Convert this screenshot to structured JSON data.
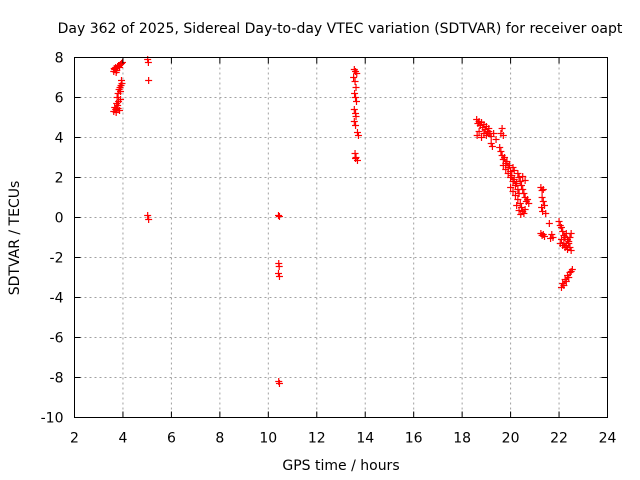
{
  "chart_data": {
    "type": "scatter",
    "title": "Day 362 of 2025, Sidereal Day-to-day VTEC variation (SDTVAR) for receiver oapt",
    "xlabel": "GPS time / hours",
    "ylabel": "SDTVAR / TECUs",
    "xlim": [
      2,
      24
    ],
    "ylim": [
      -10,
      8
    ],
    "xticks": [
      "2",
      "4",
      "6",
      "8",
      "10",
      "12",
      "14",
      "16",
      "18",
      "20",
      "22",
      "24"
    ],
    "yticks": [
      "8",
      "6",
      "4",
      "2",
      "0",
      "-2",
      "-4",
      "-6",
      "-8",
      "-10"
    ],
    "grid": true,
    "marker": "+",
    "color": "#ff0000",
    "series": [
      {
        "name": "SDTVAR",
        "points": [
          [
            3.62,
            5.3
          ],
          [
            3.66,
            5.5
          ],
          [
            3.7,
            5.4
          ],
          [
            3.74,
            5.7
          ],
          [
            3.78,
            5.6
          ],
          [
            3.82,
            5.8
          ],
          [
            3.86,
            5.35
          ],
          [
            3.9,
            5.9
          ],
          [
            3.72,
            5.25
          ],
          [
            3.8,
            5.45
          ],
          [
            3.76,
            6.0
          ],
          [
            3.8,
            6.2
          ],
          [
            3.84,
            6.4
          ],
          [
            3.88,
            6.5
          ],
          [
            3.92,
            6.6
          ],
          [
            3.96,
            6.7
          ],
          [
            3.9,
            6.3
          ],
          [
            3.94,
            6.85
          ],
          [
            3.62,
            7.3
          ],
          [
            3.66,
            7.4
          ],
          [
            3.7,
            7.5
          ],
          [
            3.74,
            7.35
          ],
          [
            3.78,
            7.55
          ],
          [
            3.82,
            7.6
          ],
          [
            3.86,
            7.5
          ],
          [
            3.9,
            7.65
          ],
          [
            3.94,
            7.7
          ],
          [
            3.98,
            7.75
          ],
          [
            3.64,
            7.45
          ],
          [
            3.72,
            7.25
          ],
          [
            5.02,
            7.9
          ],
          [
            5.05,
            7.75
          ],
          [
            5.06,
            6.85
          ],
          [
            5.02,
            0.1
          ],
          [
            5.06,
            -0.1
          ],
          [
            10.42,
            0.1
          ],
          [
            10.46,
            0.05
          ],
          [
            10.43,
            -2.3
          ],
          [
            10.45,
            -2.45
          ],
          [
            10.42,
            -2.8
          ],
          [
            10.46,
            -2.95
          ],
          [
            10.43,
            -8.2
          ],
          [
            10.46,
            -8.3
          ],
          [
            13.55,
            7.4
          ],
          [
            13.6,
            7.3
          ],
          [
            13.65,
            7.2
          ],
          [
            13.52,
            7.0
          ],
          [
            13.58,
            6.8
          ],
          [
            13.62,
            6.5
          ],
          [
            13.56,
            6.2
          ],
          [
            13.6,
            6.0
          ],
          [
            13.64,
            5.8
          ],
          [
            13.55,
            5.4
          ],
          [
            13.6,
            5.2
          ],
          [
            13.62,
            5.05
          ],
          [
            13.55,
            4.8
          ],
          [
            13.6,
            4.6
          ],
          [
            13.68,
            4.25
          ],
          [
            13.72,
            4.1
          ],
          [
            13.58,
            3.2
          ],
          [
            13.62,
            3.0
          ],
          [
            13.68,
            2.85
          ],
          [
            13.6,
            2.95
          ],
          [
            18.6,
            4.9
          ],
          [
            18.65,
            4.7
          ],
          [
            18.7,
            4.8
          ],
          [
            18.75,
            4.6
          ],
          [
            18.8,
            4.75
          ],
          [
            18.85,
            4.5
          ],
          [
            18.9,
            4.65
          ],
          [
            18.95,
            4.4
          ],
          [
            19.0,
            4.55
          ],
          [
            19.05,
            4.3
          ],
          [
            19.1,
            4.45
          ],
          [
            19.15,
            4.2
          ],
          [
            18.62,
            4.1
          ],
          [
            18.7,
            4.3
          ],
          [
            18.8,
            4.0
          ],
          [
            18.9,
            4.2
          ],
          [
            19.0,
            4.1
          ],
          [
            19.1,
            4.3
          ],
          [
            19.2,
            4.05
          ],
          [
            19.3,
            4.2
          ],
          [
            19.4,
            3.9
          ],
          [
            19.2,
            3.7
          ],
          [
            19.25,
            3.55
          ],
          [
            19.6,
            4.2
          ],
          [
            19.65,
            4.45
          ],
          [
            19.7,
            4.1
          ],
          [
            19.55,
            3.5
          ],
          [
            19.6,
            3.3
          ],
          [
            19.65,
            3.1
          ],
          [
            19.7,
            2.9
          ],
          [
            19.75,
            3.0
          ],
          [
            19.8,
            2.7
          ],
          [
            19.85,
            2.8
          ],
          [
            19.9,
            2.5
          ],
          [
            19.95,
            2.6
          ],
          [
            20.0,
            2.3
          ],
          [
            19.7,
            2.6
          ],
          [
            19.8,
            2.4
          ],
          [
            19.9,
            2.2
          ],
          [
            20.0,
            2.0
          ],
          [
            20.05,
            2.1
          ],
          [
            20.1,
            1.8
          ],
          [
            20.15,
            1.9
          ],
          [
            20.2,
            1.6
          ],
          [
            20.25,
            1.7
          ],
          [
            20.3,
            1.4
          ],
          [
            20.0,
            1.5
          ],
          [
            20.1,
            1.3
          ],
          [
            20.2,
            1.1
          ],
          [
            20.3,
            0.9
          ],
          [
            20.35,
            1.2
          ],
          [
            20.4,
            0.7
          ],
          [
            20.45,
            0.5
          ],
          [
            20.5,
            0.3
          ],
          [
            20.55,
            0.2
          ],
          [
            20.6,
            0.4
          ],
          [
            20.3,
            2.2
          ],
          [
            20.35,
            2.0
          ],
          [
            20.4,
            1.8
          ],
          [
            20.45,
            1.6
          ],
          [
            20.5,
            1.4
          ],
          [
            20.55,
            1.2
          ],
          [
            20.6,
            1.0
          ],
          [
            20.65,
            0.8
          ],
          [
            20.7,
            0.9
          ],
          [
            20.75,
            0.7
          ],
          [
            20.1,
            2.5
          ],
          [
            20.15,
            2.35
          ],
          [
            20.5,
            2.05
          ],
          [
            20.6,
            1.85
          ],
          [
            20.25,
            0.6
          ],
          [
            20.35,
            0.35
          ],
          [
            20.42,
            0.15
          ],
          [
            21.25,
            1.5
          ],
          [
            21.3,
            1.35
          ],
          [
            21.35,
            1.4
          ],
          [
            21.3,
            1.0
          ],
          [
            21.35,
            0.8
          ],
          [
            21.28,
            0.5
          ],
          [
            21.32,
            0.3
          ],
          [
            21.4,
            0.6
          ],
          [
            21.45,
            0.2
          ],
          [
            21.6,
            -0.3
          ],
          [
            21.25,
            -0.8
          ],
          [
            21.3,
            -0.9
          ],
          [
            21.35,
            -0.85
          ],
          [
            21.4,
            -0.95
          ],
          [
            21.7,
            -0.85
          ],
          [
            21.75,
            -1.0
          ],
          [
            21.65,
            -1.05
          ],
          [
            22.0,
            -0.2
          ],
          [
            22.05,
            -0.4
          ],
          [
            22.1,
            -0.5
          ],
          [
            22.15,
            -0.7
          ],
          [
            22.2,
            -0.9
          ],
          [
            22.25,
            -1.0
          ],
          [
            22.3,
            -0.8
          ],
          [
            22.35,
            -1.1
          ],
          [
            22.4,
            -1.2
          ],
          [
            22.45,
            -1.0
          ],
          [
            22.5,
            -0.8
          ],
          [
            22.05,
            -1.3
          ],
          [
            22.1,
            -1.1
          ],
          [
            22.15,
            -1.4
          ],
          [
            22.2,
            -1.3
          ],
          [
            22.25,
            -1.5
          ],
          [
            22.3,
            -1.4
          ],
          [
            22.35,
            -1.6
          ],
          [
            22.4,
            -1.3
          ],
          [
            22.45,
            -1.5
          ],
          [
            22.5,
            -1.65
          ],
          [
            22.1,
            -3.5
          ],
          [
            22.15,
            -3.3
          ],
          [
            22.2,
            -3.4
          ],
          [
            22.25,
            -3.1
          ],
          [
            22.3,
            -3.2
          ],
          [
            22.35,
            -2.9
          ],
          [
            22.4,
            -3.0
          ],
          [
            22.45,
            -2.75
          ],
          [
            22.5,
            -2.7
          ],
          [
            22.55,
            -2.6
          ]
        ]
      }
    ]
  }
}
